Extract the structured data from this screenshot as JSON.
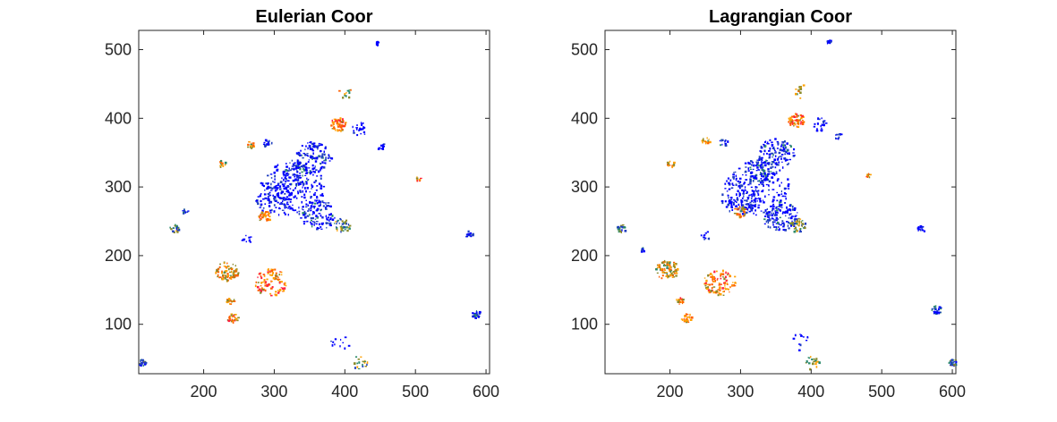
{
  "chart_data": [
    {
      "type": "scatter",
      "title": "Eulerian Coor",
      "xlabel": "",
      "ylabel": "",
      "xlim": [
        108,
        605
      ],
      "ylim": [
        28,
        528
      ],
      "xticks": [
        200,
        300,
        400,
        500,
        600
      ],
      "yticks": [
        100,
        200,
        300,
        400,
        500
      ],
      "grid": false,
      "colormap": [
        "#0000ff",
        "#1f3fbf",
        "#2a8a6a",
        "#8a8a2a",
        "#ffa000",
        "#ff6000",
        "#ff2040"
      ],
      "clusters": [
        {
          "x": 390,
          "y": 392,
          "r": 10,
          "n": 60,
          "level": 0.75
        },
        {
          "x": 355,
          "y": 345,
          "r": 22,
          "n": 120,
          "level": 0.1
        },
        {
          "x": 330,
          "y": 320,
          "r": 18,
          "n": 80,
          "level": 0.15
        },
        {
          "x": 360,
          "y": 260,
          "r": 22,
          "n": 130,
          "level": 0.1
        },
        {
          "x": 395,
          "y": 245,
          "r": 10,
          "n": 40,
          "level": 0.4
        },
        {
          "x": 300,
          "y": 285,
          "r": 25,
          "n": 90,
          "level": 0.05
        },
        {
          "x": 325,
          "y": 300,
          "r": 40,
          "n": 180,
          "level": 0.0
        },
        {
          "x": 285,
          "y": 258,
          "r": 8,
          "n": 35,
          "level": 0.65
        },
        {
          "x": 232,
          "y": 178,
          "r": 14,
          "n": 90,
          "level": 0.6
        },
        {
          "x": 295,
          "y": 162,
          "r": 20,
          "n": 100,
          "level": 0.75
        },
        {
          "x": 237,
          "y": 135,
          "r": 5,
          "n": 20,
          "level": 0.7
        },
        {
          "x": 240,
          "y": 110,
          "r": 7,
          "n": 30,
          "level": 0.7
        },
        {
          "x": 158,
          "y": 240,
          "r": 6,
          "n": 25,
          "level": 0.35
        },
        {
          "x": 173,
          "y": 265,
          "r": 4,
          "n": 10,
          "level": 0.2
        },
        {
          "x": 112,
          "y": 45,
          "r": 5,
          "n": 30,
          "level": 0.25
        },
        {
          "x": 585,
          "y": 115,
          "r": 6,
          "n": 25,
          "level": 0.2
        },
        {
          "x": 575,
          "y": 232,
          "r": 5,
          "n": 15,
          "level": 0.05
        },
        {
          "x": 445,
          "y": 510,
          "r": 3,
          "n": 10,
          "level": 0.0
        },
        {
          "x": 420,
          "y": 385,
          "r": 10,
          "n": 20,
          "level": 0.0
        },
        {
          "x": 450,
          "y": 360,
          "r": 5,
          "n": 10,
          "level": 0.0
        },
        {
          "x": 503,
          "y": 313,
          "r": 3,
          "n": 10,
          "level": 0.75
        },
        {
          "x": 265,
          "y": 362,
          "r": 5,
          "n": 15,
          "level": 0.6
        },
        {
          "x": 225,
          "y": 335,
          "r": 5,
          "n": 15,
          "level": 0.55
        },
        {
          "x": 290,
          "y": 365,
          "r": 6,
          "n": 15,
          "level": 0.1
        },
        {
          "x": 400,
          "y": 440,
          "r": 10,
          "n": 12,
          "level": 0.55
        },
        {
          "x": 420,
          "y": 45,
          "r": 10,
          "n": 20,
          "level": 0.45
        },
        {
          "x": 395,
          "y": 75,
          "r": 15,
          "n": 12,
          "level": 0.0
        },
        {
          "x": 260,
          "y": 225,
          "r": 6,
          "n": 10,
          "level": 0.0
        }
      ]
    },
    {
      "type": "scatter",
      "title": "Lagrangian Coor",
      "xlabel": "",
      "ylabel": "",
      "xlim": [
        108,
        605
      ],
      "ylim": [
        28,
        528
      ],
      "xticks": [
        200,
        300,
        400,
        500,
        600
      ],
      "yticks": [
        100,
        200,
        300,
        400,
        500
      ],
      "grid": false,
      "colormap": [
        "#0000ff",
        "#1f3fbf",
        "#2a8a6a",
        "#8a8a2a",
        "#ffa000",
        "#ff6000",
        "#ff2040"
      ],
      "clusters": [
        {
          "x": 378,
          "y": 398,
          "r": 10,
          "n": 60,
          "level": 0.75
        },
        {
          "x": 350,
          "y": 350,
          "r": 22,
          "n": 120,
          "level": 0.1
        },
        {
          "x": 325,
          "y": 325,
          "r": 18,
          "n": 80,
          "level": 0.15
        },
        {
          "x": 355,
          "y": 258,
          "r": 22,
          "n": 130,
          "level": 0.1
        },
        {
          "x": 380,
          "y": 245,
          "r": 10,
          "n": 40,
          "level": 0.4
        },
        {
          "x": 300,
          "y": 285,
          "r": 25,
          "n": 90,
          "level": 0.05
        },
        {
          "x": 322,
          "y": 300,
          "r": 40,
          "n": 180,
          "level": 0.0
        },
        {
          "x": 298,
          "y": 265,
          "r": 8,
          "n": 35,
          "level": 0.65
        },
        {
          "x": 195,
          "y": 180,
          "r": 14,
          "n": 90,
          "level": 0.6
        },
        {
          "x": 270,
          "y": 162,
          "r": 20,
          "n": 100,
          "level": 0.75
        },
        {
          "x": 213,
          "y": 135,
          "r": 5,
          "n": 20,
          "level": 0.7
        },
        {
          "x": 223,
          "y": 110,
          "r": 7,
          "n": 30,
          "level": 0.7
        },
        {
          "x": 130,
          "y": 240,
          "r": 6,
          "n": 25,
          "level": 0.35
        },
        {
          "x": 160,
          "y": 210,
          "r": 3,
          "n": 8,
          "level": 0.2
        },
        {
          "x": 600,
          "y": 45,
          "r": 5,
          "n": 30,
          "level": 0.25
        },
        {
          "x": 577,
          "y": 122,
          "r": 6,
          "n": 25,
          "level": 0.2
        },
        {
          "x": 555,
          "y": 240,
          "r": 5,
          "n": 15,
          "level": 0.05
        },
        {
          "x": 425,
          "y": 512,
          "r": 3,
          "n": 10,
          "level": 0.0
        },
        {
          "x": 410,
          "y": 392,
          "r": 10,
          "n": 20,
          "level": 0.0
        },
        {
          "x": 437,
          "y": 375,
          "r": 5,
          "n": 10,
          "level": 0.0
        },
        {
          "x": 480,
          "y": 318,
          "r": 3,
          "n": 10,
          "level": 0.75
        },
        {
          "x": 250,
          "y": 368,
          "r": 5,
          "n": 15,
          "level": 0.6
        },
        {
          "x": 200,
          "y": 335,
          "r": 5,
          "n": 15,
          "level": 0.55
        },
        {
          "x": 275,
          "y": 365,
          "r": 6,
          "n": 15,
          "level": 0.1
        },
        {
          "x": 385,
          "y": 440,
          "r": 10,
          "n": 12,
          "level": 0.55
        },
        {
          "x": 400,
          "y": 45,
          "r": 10,
          "n": 20,
          "level": 0.45
        },
        {
          "x": 380,
          "y": 75,
          "r": 15,
          "n": 12,
          "level": 0.0
        },
        {
          "x": 250,
          "y": 230,
          "r": 6,
          "n": 10,
          "level": 0.0
        }
      ]
    }
  ]
}
